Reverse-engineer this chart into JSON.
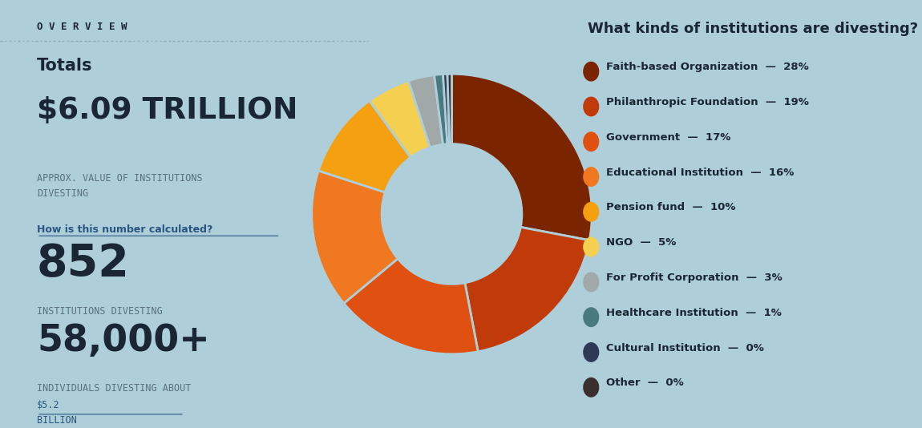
{
  "background_color": "#aecfda",
  "overview_text": "O V E R V I E W",
  "title_left": "Totals",
  "big_number_1": "$6.09 TRILLION",
  "label_1": "APPROX. VALUE OF INSTITUTIONS\nDIVESTING",
  "link_1": "How is this number calculated?",
  "big_number_2": "852",
  "label_2": "INSTITUTIONS DIVESTING",
  "big_number_3": "58,000+",
  "label_3a": "INDIVIDUALS DIVESTING ABOUT ",
  "label_3b": "$5.2\nBILLION",
  "chart_title": "What kinds of institutions are divesting?",
  "pie_data": [
    28,
    19,
    17,
    16,
    10,
    5,
    3,
    1,
    0.5,
    0.5
  ],
  "pie_colors": [
    "#7b2500",
    "#c03a0a",
    "#e05010",
    "#f07820",
    "#f5a010",
    "#f5d050",
    "#a0a8a8",
    "#4a7a80",
    "#2e3a55",
    "#3a2e2e"
  ],
  "pie_labels": [
    "Faith-based Organization",
    "Philanthropic Foundation",
    "Government",
    "Educational Institution",
    "Pension fund",
    "NGO",
    "For Profit Corporation",
    "Healthcare Institution",
    "Cultural Institution",
    "Other"
  ],
  "pie_pcts": [
    "28%",
    "19%",
    "17%",
    "16%",
    "10%",
    "5%",
    "3%",
    "1%",
    "0%",
    "0%"
  ],
  "text_dark": "#1a2633",
  "text_gray": "#5a7080",
  "link_color": "#2a5580",
  "dotted_line_color": "#8aaab8"
}
